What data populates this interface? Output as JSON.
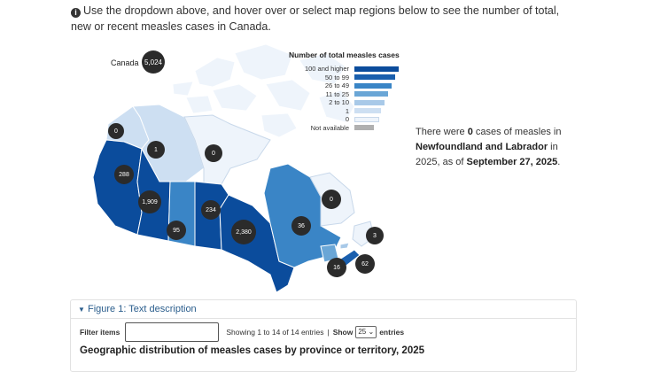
{
  "intro": {
    "text": "Use the dropdown above, and hover over or select map regions below to see the number of total, new or recent measles cases in Canada."
  },
  "map": {
    "canada_label": "Canada",
    "canada_total": "5,024",
    "regions": [
      {
        "name": "Yukon",
        "value": "0"
      },
      {
        "name": "Northwest Territories",
        "value": "1"
      },
      {
        "name": "Nunavut",
        "value": "0"
      },
      {
        "name": "British Columbia",
        "value": "288"
      },
      {
        "name": "Alberta",
        "value": "1,909"
      },
      {
        "name": "Saskatchewan",
        "value": "95"
      },
      {
        "name": "Manitoba",
        "value": "234"
      },
      {
        "name": "Ontario",
        "value": "2,380"
      },
      {
        "name": "Quebec",
        "value": "36"
      },
      {
        "name": "Newfoundland and Labrador",
        "value": "0"
      },
      {
        "name": "Prince Edward Island",
        "value": "3"
      },
      {
        "name": "New Brunswick",
        "value": "16"
      },
      {
        "name": "Nova Scotia",
        "value": "62"
      }
    ]
  },
  "legend": {
    "title": "Number of total measles cases",
    "items": [
      {
        "label": "100 and higher",
        "color": "#0b4c9c"
      },
      {
        "label": "50 to 99",
        "color": "#1a5fae"
      },
      {
        "label": "26 to 49",
        "color": "#3a85c6"
      },
      {
        "label": "11 to 25",
        "color": "#6aa6d6"
      },
      {
        "label": "2 to 10",
        "color": "#a8c9e8"
      },
      {
        "label": "1",
        "color": "#cddff2"
      },
      {
        "label": "0",
        "color": "#eef4fb"
      },
      {
        "label": "Not available",
        "color": "#b0b0b0"
      }
    ]
  },
  "side": {
    "p1": "There were ",
    "count": "0",
    "p2": " cases of measles in ",
    "region": "Newfoundland and Labrador",
    "p3": " in 2025, as of ",
    "date": "September 27, 2025",
    "p4": "."
  },
  "panel": {
    "figure_title": "Figure 1: Text description",
    "filter_label": "Filter items",
    "showing": "Showing 1 to 14 of 14 entries",
    "sep": "|",
    "show_label": "Show",
    "show_value": "25",
    "entries_label": "entries",
    "table_title": "Geographic distribution of measles cases by province or territory, 2025"
  }
}
